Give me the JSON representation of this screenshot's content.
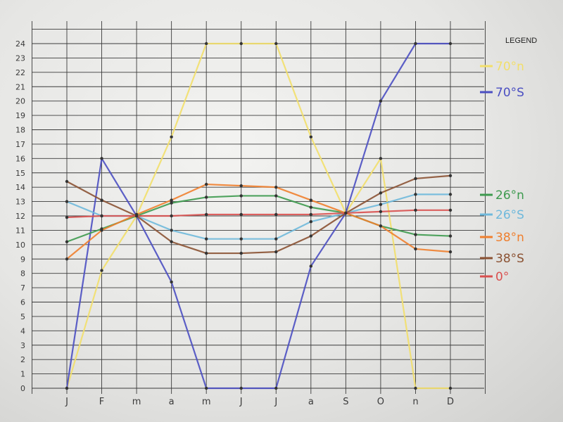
{
  "chart_data": {
    "type": "line",
    "legend_title": "LEGEND",
    "legend_position": "right",
    "categories": [
      "J",
      "F",
      "m",
      "a",
      "m",
      "J",
      "J",
      "a",
      "S",
      "O",
      "n",
      "D"
    ],
    "y_ticks": [
      "0",
      "1",
      "2",
      "3",
      "4",
      "5",
      "6",
      "7",
      "8",
      "9",
      "10",
      "11",
      "12",
      "13",
      "14",
      "15",
      "16",
      "17",
      "18",
      "19",
      "20",
      "21",
      "22",
      "23",
      "24"
    ],
    "ylim": [
      0,
      24
    ],
    "grid": true,
    "series": [
      {
        "name": "70°n",
        "color": "#f2df6a",
        "values": [
          0,
          8.2,
          12,
          17.5,
          24,
          24,
          24,
          17.5,
          12.2,
          16,
          0,
          0
        ]
      },
      {
        "name": "70°S",
        "color": "#4b4fc2",
        "values": [
          0,
          16,
          12,
          7.4,
          0,
          0,
          0,
          8.5,
          12.2,
          20,
          24,
          24
        ]
      },
      {
        "name": "26°n",
        "color": "#3d9a4e",
        "values": [
          10.2,
          11.1,
          12,
          12.9,
          13.3,
          13.4,
          13.4,
          12.6,
          12.2,
          11.3,
          10.7,
          10.6
        ]
      },
      {
        "name": "26°S",
        "color": "#6fb9dc",
        "values": [
          13.0,
          12.0,
          12.0,
          11.0,
          10.4,
          10.4,
          10.4,
          11.6,
          12.2,
          12.8,
          13.5,
          13.5
        ]
      },
      {
        "name": "38°n",
        "color": "#ef7f2e",
        "values": [
          9.0,
          11.0,
          12.1,
          13.1,
          14.2,
          14.1,
          14.0,
          13.1,
          12.2,
          11.3,
          9.7,
          9.5
        ]
      },
      {
        "name": "38°S",
        "color": "#8b5233",
        "values": [
          14.4,
          13.1,
          12.0,
          10.2,
          9.4,
          9.4,
          9.5,
          10.6,
          12.2,
          13.6,
          14.6,
          14.8
        ]
      },
      {
        "name": "0°",
        "color": "#d9504f",
        "values": [
          11.9,
          12.0,
          12.0,
          12.0,
          12.1,
          12.1,
          12.1,
          12.1,
          12.2,
          12.3,
          12.4,
          12.4
        ]
      }
    ]
  }
}
